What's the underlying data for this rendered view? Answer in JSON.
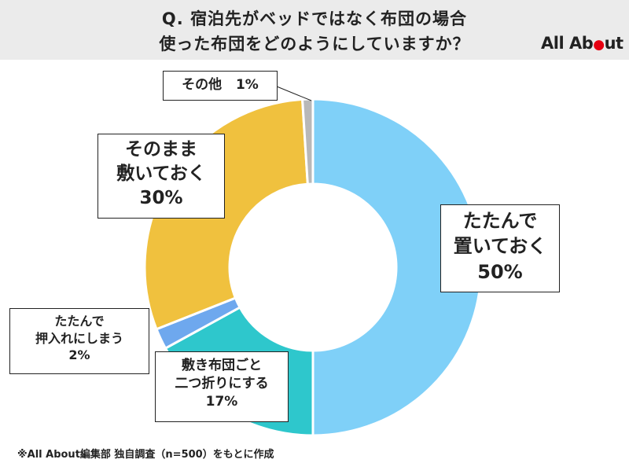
{
  "header": {
    "title_line1": "Q. 宿泊先がベッドではなく布団の場合",
    "title_line2": "使った布団をどのようにしていますか？",
    "logo": "All About",
    "logo_accent_color": "#e60012"
  },
  "footnote": "※All About編集部 独自調査（n=500）をもとに作成",
  "chart_data": {
    "type": "pie",
    "variant": "donut",
    "title": "",
    "slices": [
      {
        "label_lines": [
          "たたんで",
          "置いておく"
        ],
        "value": 50,
        "value_text": "50%",
        "color": "#7fd0f8"
      },
      {
        "label_lines": [
          "敷き布団ごと",
          "二つ折りにする"
        ],
        "value": 17,
        "value_text": "17%",
        "color": "#2ec7cc"
      },
      {
        "label_lines": [
          "たたんで",
          "押入れにしまう"
        ],
        "value": 2,
        "value_text": "2%",
        "color": "#6ea8ee"
      },
      {
        "label_lines": [
          "そのまま",
          "敷いておく"
        ],
        "value": 30,
        "value_text": "30%",
        "color": "#f0c13e"
      },
      {
        "label_lines": [
          "その他"
        ],
        "value": 1,
        "value_text": "1%",
        "color": "#b8b8b8"
      }
    ]
  }
}
